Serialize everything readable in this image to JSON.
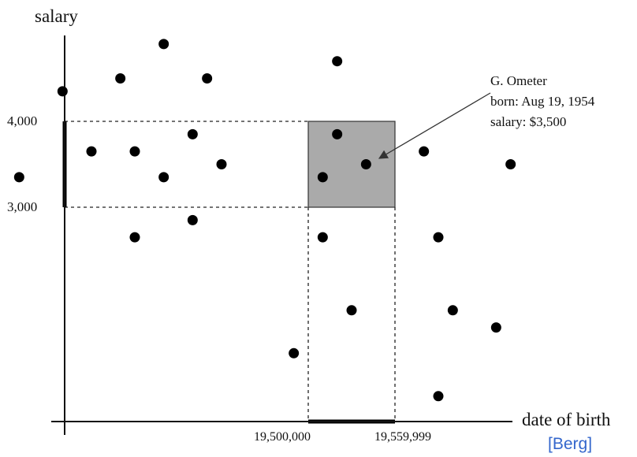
{
  "chart_data": {
    "type": "scatter",
    "xlabel": "date of birth",
    "ylabel": "salary",
    "y_ticks": [
      {
        "label": "4,000",
        "value": 4000
      },
      {
        "label": "3,000",
        "value": 3000
      }
    ],
    "x_ticks": [
      {
        "label": "19,500,000",
        "value": 19500000
      },
      {
        "label": "19,559,999",
        "value": 19559999
      }
    ],
    "query_range": {
      "x": [
        19500000,
        19559999
      ],
      "y": [
        3000,
        4000
      ]
    },
    "points": [
      {
        "x": 19300000,
        "y": 3350
      },
      {
        "x": 19330000,
        "y": 4350
      },
      {
        "x": 19350000,
        "y": 3650
      },
      {
        "x": 19370000,
        "y": 4500
      },
      {
        "x": 19380000,
        "y": 3650
      },
      {
        "x": 19380000,
        "y": 2650
      },
      {
        "x": 19400000,
        "y": 4900
      },
      {
        "x": 19400000,
        "y": 3350
      },
      {
        "x": 19420000,
        "y": 3850
      },
      {
        "x": 19420000,
        "y": 2850
      },
      {
        "x": 19430000,
        "y": 4500
      },
      {
        "x": 19440000,
        "y": 3500
      },
      {
        "x": 19490000,
        "y": 1300
      },
      {
        "x": 19510000,
        "y": 3350
      },
      {
        "x": 19510000,
        "y": 2650
      },
      {
        "x": 19520000,
        "y": 4700
      },
      {
        "x": 19520000,
        "y": 3850
      },
      {
        "x": 19530000,
        "y": 1800
      },
      {
        "x": 19540000,
        "y": 3500
      },
      {
        "x": 19580000,
        "y": 3650
      },
      {
        "x": 19590000,
        "y": 2650
      },
      {
        "x": 19590000,
        "y": 800
      },
      {
        "x": 19600000,
        "y": 1800
      },
      {
        "x": 19630000,
        "y": 1600
      },
      {
        "x": 19640000,
        "y": 3500
      }
    ],
    "annotation": {
      "lines": [
        "G. Ometer",
        "born: Aug 19, 1954",
        "salary: $3,500"
      ],
      "target": {
        "x": 19540000,
        "y": 3500
      }
    },
    "grid": false,
    "legend": "none"
  },
  "credit": "[Berg]"
}
